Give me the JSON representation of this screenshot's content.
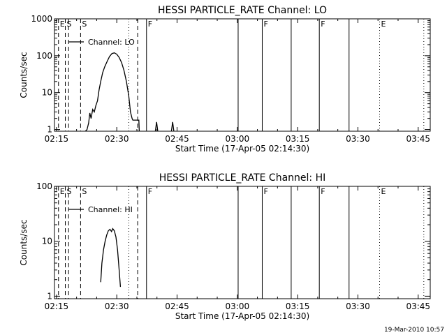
{
  "footer": {
    "timestamp": "19-Mar-2010 10:57"
  },
  "chart_data": [
    {
      "type": "line",
      "title": "HESSI PARTICLE_RATE Channel: LO",
      "xlabel": "Start Time (17-Apr-05 02:14:30)",
      "ylabel": "Counts/sec",
      "yscale": "log",
      "ylim": [
        0.9,
        1000
      ],
      "xlim_min": [
        14.5,
        108.0
      ],
      "x_ticks_min": [
        15,
        30,
        45,
        60,
        75,
        90,
        105
      ],
      "x_tick_labels": [
        "02:15",
        "02:30",
        "02:45",
        "03:00",
        "03:15",
        "03:30",
        "03:45"
      ],
      "y_ticks": [
        1,
        10,
        100,
        1000
      ],
      "y_tick_labels": [
        "1",
        "10",
        "100",
        "1000"
      ],
      "legend": {
        "label": "Channel: LO",
        "placement": "top-left"
      },
      "markers": [
        {
          "t_min": 15.5,
          "style": "dashed",
          "label": "E"
        },
        {
          "t_min": 17.2,
          "style": "dashed",
          "label": "S"
        },
        {
          "t_min": 18.0,
          "style": "dashed",
          "label": ""
        },
        {
          "t_min": 21.0,
          "style": "dashed",
          "label": "S"
        },
        {
          "t_min": 33.0,
          "style": "dotted",
          "label": ""
        },
        {
          "t_min": 35.2,
          "style": "dashed",
          "label": ""
        },
        {
          "t_min": 37.4,
          "style": "solid",
          "label": "F"
        },
        {
          "t_min": 60.2,
          "style": "solid",
          "label": ""
        },
        {
          "t_min": 66.2,
          "style": "solid",
          "label": "F"
        },
        {
          "t_min": 73.4,
          "style": "solid",
          "label": ""
        },
        {
          "t_min": 80.4,
          "style": "solid",
          "label": "F"
        },
        {
          "t_min": 87.8,
          "style": "solid",
          "label": ""
        },
        {
          "t_min": 95.4,
          "style": "dotted",
          "label": "E"
        },
        {
          "t_min": 106.4,
          "style": "dotted",
          "label": ""
        }
      ],
      "series": [
        {
          "name": "Channel: LO",
          "segments": [
            [
              [
                22.2,
                0.9
              ],
              [
                22.6,
                1.0
              ],
              [
                23.0,
                1.5
              ],
              [
                23.3,
                2.8
              ],
              [
                23.6,
                2.0
              ],
              [
                24.0,
                3.5
              ],
              [
                24.4,
                3.0
              ],
              [
                24.8,
                4.5
              ],
              [
                25.2,
                6.0
              ],
              [
                25.6,
                12
              ],
              [
                26.0,
                20
              ],
              [
                26.5,
                35
              ],
              [
                27.0,
                50
              ],
              [
                27.6,
                70
              ],
              [
                28.2,
                95
              ],
              [
                28.8,
                115
              ],
              [
                29.4,
                120
              ],
              [
                30.0,
                110
              ],
              [
                30.6,
                90
              ],
              [
                31.2,
                65
              ],
              [
                31.8,
                40
              ],
              [
                32.4,
                20
              ],
              [
                33.0,
                8
              ],
              [
                33.4,
                3
              ],
              [
                33.8,
                2
              ],
              [
                34.0,
                1.8
              ],
              [
                34.6,
                1.8
              ],
              [
                35.0,
                1.8
              ],
              [
                35.5,
                1.8
              ],
              [
                35.6,
                0.9
              ]
            ],
            [
              [
                39.6,
                0.9
              ],
              [
                39.9,
                1.6
              ],
              [
                40.2,
                0.9
              ]
            ],
            [
              [
                43.6,
                0.9
              ],
              [
                43.9,
                1.6
              ],
              [
                44.2,
                0.9
              ]
            ]
          ]
        }
      ]
    },
    {
      "type": "line",
      "title": "HESSI PARTICLE_RATE Channel: HI",
      "xlabel": "Start Time (17-Apr-05 02:14:30)",
      "ylabel": "Counts/sec",
      "yscale": "log",
      "ylim": [
        0.9,
        100
      ],
      "xlim_min": [
        14.5,
        108.0
      ],
      "x_ticks_min": [
        15,
        30,
        45,
        60,
        75,
        90,
        105
      ],
      "x_tick_labels": [
        "02:15",
        "02:30",
        "02:45",
        "03:00",
        "03:15",
        "03:30",
        "03:45"
      ],
      "y_ticks": [
        1,
        10,
        100
      ],
      "y_tick_labels": [
        "1",
        "10",
        "100"
      ],
      "legend": {
        "label": "Channel: HI",
        "placement": "top-left"
      },
      "markers": [
        {
          "t_min": 15.5,
          "style": "dashed",
          "label": "E"
        },
        {
          "t_min": 17.2,
          "style": "dashed",
          "label": "S"
        },
        {
          "t_min": 18.0,
          "style": "dashed",
          "label": ""
        },
        {
          "t_min": 21.0,
          "style": "dashed",
          "label": "S"
        },
        {
          "t_min": 33.0,
          "style": "dotted",
          "label": ""
        },
        {
          "t_min": 35.2,
          "style": "dashed",
          "label": ""
        },
        {
          "t_min": 37.4,
          "style": "solid",
          "label": "F"
        },
        {
          "t_min": 60.2,
          "style": "solid",
          "label": ""
        },
        {
          "t_min": 66.2,
          "style": "solid",
          "label": "F"
        },
        {
          "t_min": 73.4,
          "style": "solid",
          "label": ""
        },
        {
          "t_min": 80.4,
          "style": "solid",
          "label": "F"
        },
        {
          "t_min": 87.8,
          "style": "solid",
          "label": ""
        },
        {
          "t_min": 95.4,
          "style": "dotted",
          "label": "E"
        },
        {
          "t_min": 106.4,
          "style": "dotted",
          "label": ""
        }
      ],
      "series": [
        {
          "name": "Channel: HI",
          "segments": [
            [
              [
                26.0,
                1.8
              ],
              [
                26.3,
                4.0
              ],
              [
                26.7,
                7.0
              ],
              [
                27.1,
                10
              ],
              [
                27.5,
                13
              ],
              [
                27.9,
                15.5
              ],
              [
                28.3,
                16.5
              ],
              [
                28.7,
                15.0
              ],
              [
                29.0,
                17.0
              ],
              [
                29.4,
                15.5
              ],
              [
                29.8,
                12.0
              ],
              [
                30.2,
                7.0
              ],
              [
                30.6,
                3.0
              ],
              [
                30.9,
                1.5
              ],
              [
                31.0,
                1.5
              ]
            ]
          ]
        }
      ]
    }
  ]
}
